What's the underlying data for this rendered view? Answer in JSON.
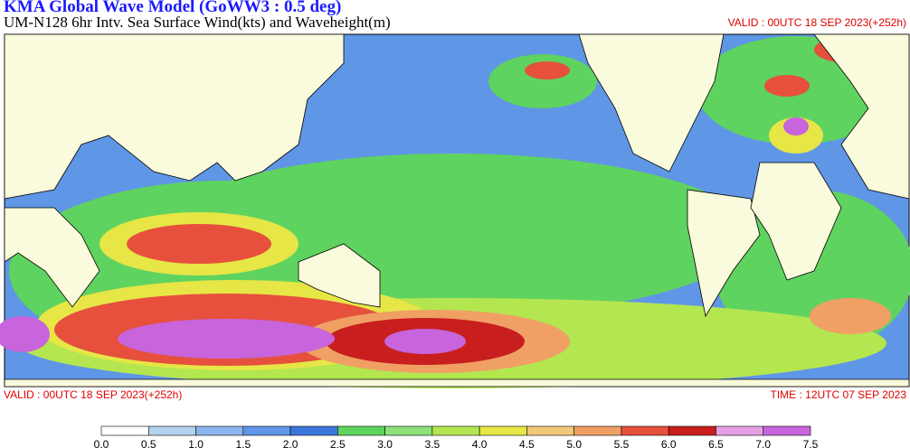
{
  "header": {
    "title": "KMA  Global Wave Model (GoWW3 : 0.5 deg)",
    "subtitle": "UM-N128  6hr Intv. Sea Surface Wind(kts) and Waveheight(m)",
    "valid_top": "VALID : 00UTC 18 SEP 2023(+252h)"
  },
  "footer": {
    "valid": "VALID : 00UTC 18 SEP 2023(+252h)",
    "time": "TIME : 12UTC 07 SEP 2023"
  },
  "legend": {
    "colors": [
      "#ffffff",
      "#b4d2f0",
      "#8cb4ee",
      "#5f96e6",
      "#3c78dc",
      "#5fd35f",
      "#8ce178",
      "#b4e650",
      "#e6e646",
      "#f0c878",
      "#f0a064",
      "#e6503c",
      "#c81e1e",
      "#e6a0e6",
      "#c864dc",
      "#a030c8"
    ],
    "ticks": [
      {
        "value": 0,
        "label": "0.0"
      },
      0.5,
      {
        "value": 1,
        "label": "1.0"
      },
      1.5,
      {
        "value": 2,
        "label": "2.0"
      },
      2.5,
      {
        "value": 3,
        "label": "3.0"
      },
      3.5,
      {
        "value": 4,
        "label": "4.0"
      },
      4.5,
      {
        "value": 5,
        "label": "5.0"
      },
      5.5,
      {
        "value": 6,
        "label": "6.0"
      },
      6.5,
      {
        "value": 7,
        "label": "7.0"
      },
      7.5
    ]
  }
}
